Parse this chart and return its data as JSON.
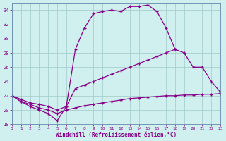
{
  "bg_color": "#d0f0f0",
  "line_color": "#880088",
  "xlabel": "Windchill (Refroidissement éolien,°C)",
  "xlim": [
    0,
    23
  ],
  "ylim": [
    18,
    35
  ],
  "yticks": [
    18,
    20,
    22,
    24,
    26,
    28,
    30,
    32,
    34
  ],
  "xticks": [
    0,
    1,
    2,
    3,
    4,
    5,
    6,
    7,
    8,
    9,
    10,
    11,
    12,
    13,
    14,
    15,
    16,
    17,
    18,
    19,
    20,
    21,
    22,
    23
  ],
  "line_top_x": [
    0,
    1,
    2,
    3,
    4,
    5,
    6,
    7,
    8,
    9,
    10,
    11,
    12,
    13,
    14,
    15,
    16,
    17,
    18
  ],
  "line_top_y": [
    22,
    21.2,
    20.5,
    20,
    19.5,
    18.5,
    20.5,
    28.5,
    31.5,
    33.5,
    33.8,
    34.0,
    33.8,
    34.5,
    34.5,
    34.7,
    33.8,
    31.5,
    28.5
  ],
  "line_mid_x": [
    0,
    1,
    2,
    3,
    4,
    5,
    6,
    7,
    8,
    9,
    10,
    11,
    12,
    13,
    14,
    15,
    16,
    17,
    18,
    19,
    20,
    21,
    22,
    23
  ],
  "line_mid_y": [
    22,
    21.5,
    21.0,
    20.8,
    20.5,
    20.0,
    20.5,
    23.0,
    23.5,
    24.0,
    24.5,
    25.0,
    25.5,
    26.0,
    26.5,
    27.0,
    27.5,
    28.0,
    28.5,
    28.0,
    26.0,
    26.0,
    24.0,
    22.5
  ],
  "line_bot_x": [
    0,
    1,
    2,
    3,
    4,
    5,
    6,
    7,
    8,
    9,
    10,
    11,
    12,
    13,
    14,
    15,
    16,
    17,
    18,
    19,
    20,
    21,
    22,
    23
  ],
  "line_bot_y": [
    22,
    21.2,
    20.8,
    20.3,
    20.0,
    19.5,
    20.0,
    20.3,
    20.6,
    20.8,
    21.0,
    21.2,
    21.4,
    21.6,
    21.7,
    21.8,
    21.9,
    22.0,
    22.0,
    22.1,
    22.1,
    22.2,
    22.2,
    22.3
  ]
}
